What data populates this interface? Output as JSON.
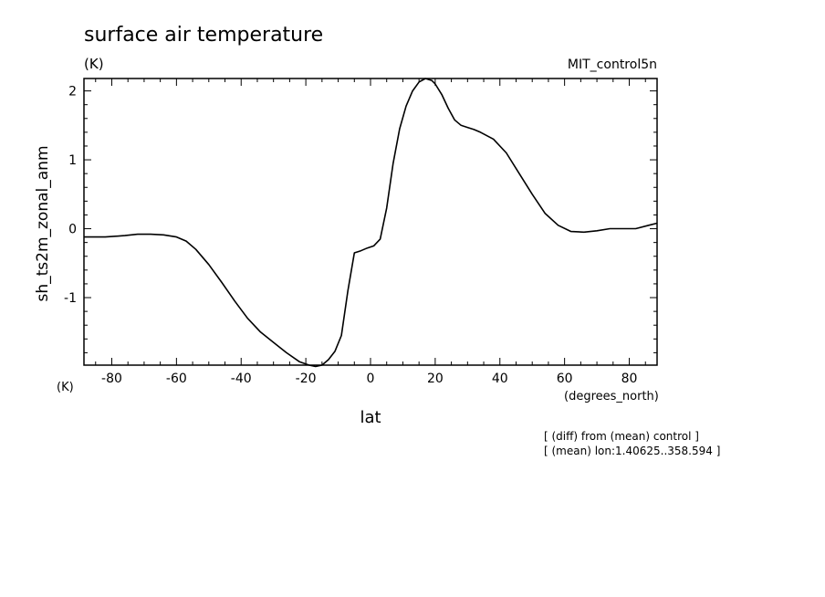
{
  "chart_data": {
    "type": "line",
    "title": "surface air temperature",
    "units_label": "(K)",
    "run_label": "MIT_control5n",
    "ylabel": "sh_ts2m_zonal_anm",
    "xlabel": "lat",
    "x_units_label": "(degrees_north)",
    "y_axis_units_label": "(K)",
    "xlim": [
      -88.6,
      88.6
    ],
    "ylim": [
      -1.98,
      2.18
    ],
    "x_ticks": [
      -80,
      -60,
      -40,
      -20,
      0,
      20,
      40,
      60,
      80
    ],
    "x_tick_labels": [
      "-80",
      "-60",
      "-40",
      "-20",
      "0",
      "20",
      "40",
      "60",
      "80"
    ],
    "y_ticks": [
      -1,
      0,
      1,
      2
    ],
    "y_tick_labels": [
      "-1",
      "0",
      "1",
      "2"
    ],
    "grid": false,
    "annotations": [
      "[ (diff) from (mean) control ]",
      "[ (mean) lon:1.40625..358.594 ]"
    ],
    "series": [
      {
        "x": [
          -88.6,
          -82,
          -76,
          -72,
          -68,
          -64,
          -60,
          -57,
          -54,
          -50,
          -46,
          -42,
          -38,
          -34,
          -30,
          -26,
          -22,
          -19,
          -17,
          -15,
          -13,
          -11,
          -9,
          -7,
          -5,
          -3,
          -1,
          1,
          3,
          5,
          7,
          9,
          11,
          13,
          15,
          17,
          19,
          20,
          22,
          24,
          26,
          28,
          30,
          32,
          34,
          38,
          42,
          46,
          50,
          54,
          58,
          62,
          66,
          70,
          74,
          78,
          82,
          86,
          88.6
        ],
        "y": [
          -0.12,
          -0.12,
          -0.1,
          -0.08,
          -0.08,
          -0.09,
          -0.12,
          -0.18,
          -0.3,
          -0.52,
          -0.78,
          -1.05,
          -1.3,
          -1.5,
          -1.65,
          -1.8,
          -1.93,
          -1.98,
          -2.0,
          -1.98,
          -1.9,
          -1.78,
          -1.55,
          -0.9,
          -0.35,
          -0.32,
          -0.28,
          -0.25,
          -0.15,
          0.3,
          0.95,
          1.45,
          1.78,
          2.0,
          2.13,
          2.18,
          2.15,
          2.1,
          1.95,
          1.75,
          1.58,
          1.5,
          1.47,
          1.44,
          1.4,
          1.3,
          1.1,
          0.8,
          0.5,
          0.22,
          0.05,
          -0.04,
          -0.05,
          -0.03,
          0.0,
          0.0,
          0.0,
          0.05,
          0.08
        ]
      }
    ]
  }
}
